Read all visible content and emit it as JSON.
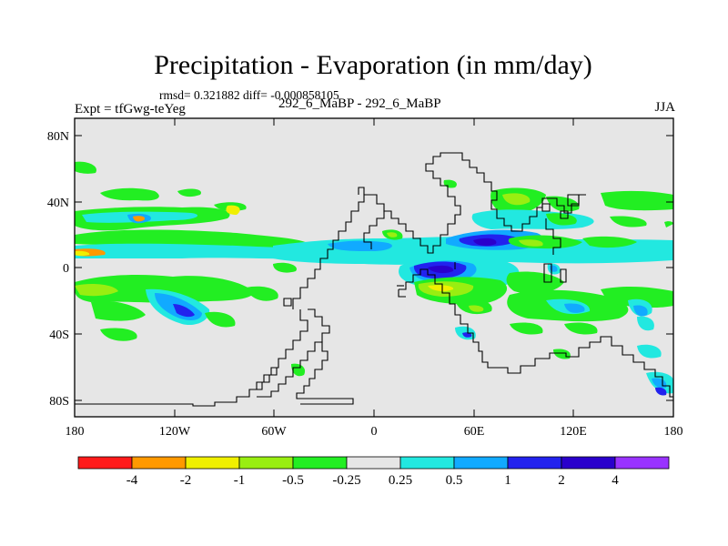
{
  "title": "Precipitation - Evaporation (in mm/day)",
  "stats": "rmsd= 0.321882  diff= -0.000858105",
  "experiment": "Expt = tfGwg-teYeg",
  "runs": "292_6_MaBP - 292_6_MaBP",
  "season": "JJA",
  "map": {
    "latitude_ticks": [
      "80N",
      "40N",
      "0",
      "40S",
      "80S"
    ],
    "longitude_ticks": [
      "180",
      "120W",
      "60W",
      "0",
      "60E",
      "120E",
      "180"
    ]
  },
  "colorbar": {
    "levels": [
      "-4",
      "-2",
      "-1",
      "-0.5",
      "-0.25",
      "0.25",
      "0.5",
      "1",
      "2",
      "4"
    ],
    "colors": [
      "#ff1a1a",
      "#ff9900",
      "#f0f000",
      "#99ee11",
      "#22ee22",
      "#e6e6e6",
      "#22e8e0",
      "#11aaff",
      "#2222ee",
      "#2a00cc",
      "#9933ff"
    ]
  },
  "colors": {
    "background": "#e6e6e6",
    "frame": "#000000"
  }
}
